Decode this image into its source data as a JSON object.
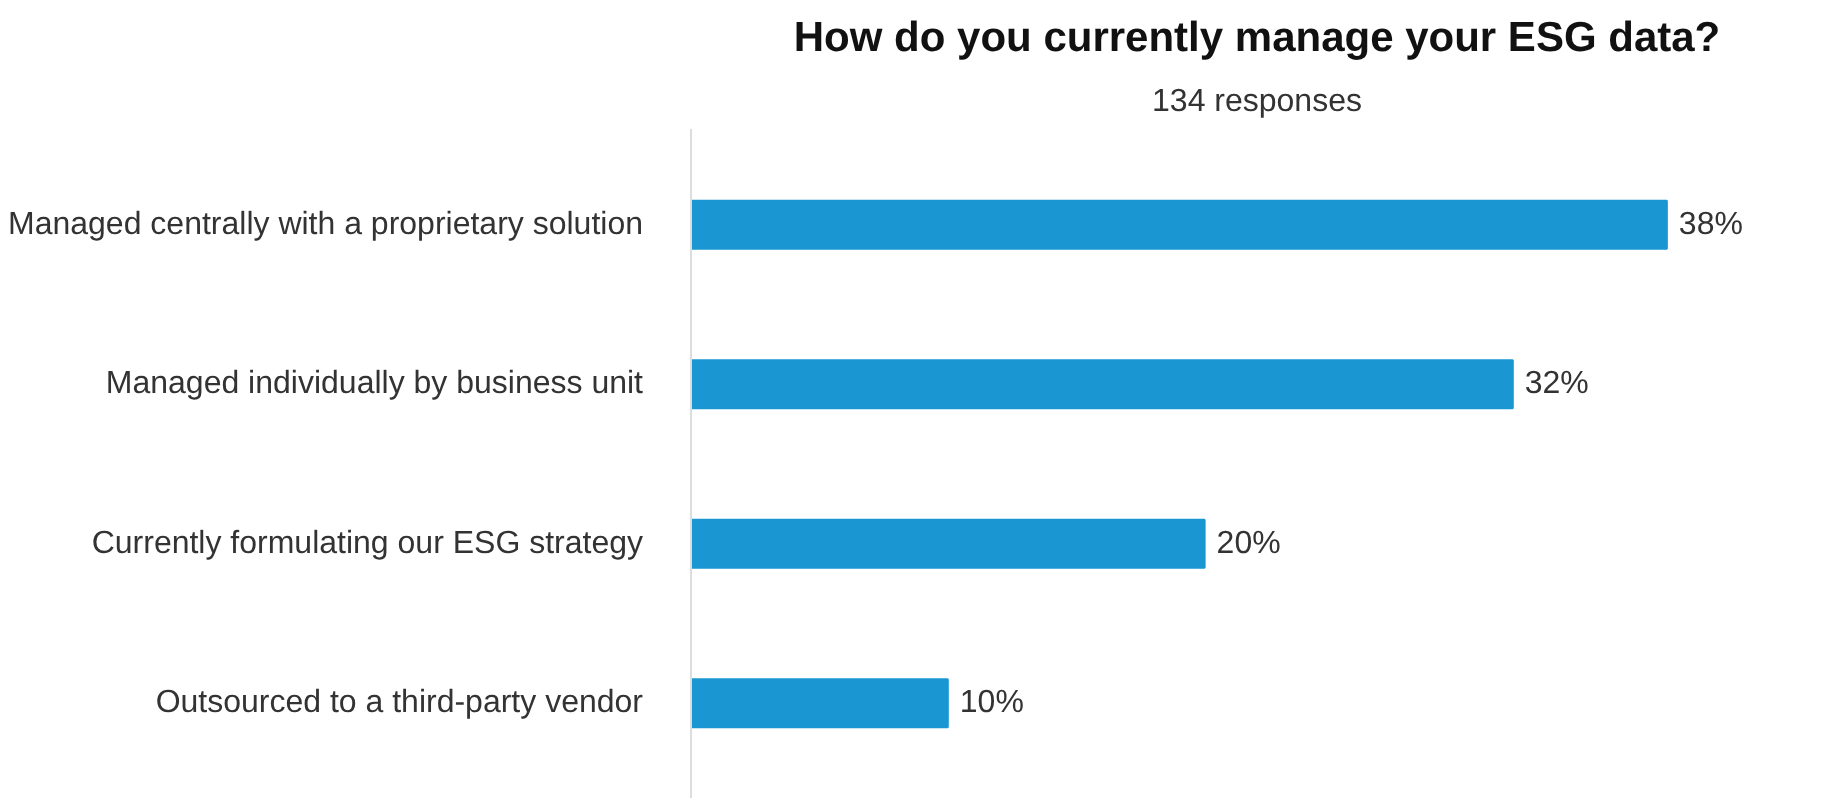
{
  "chart_data": {
    "type": "bar",
    "orientation": "horizontal",
    "title": "How do you currently manage your ESG data?",
    "subtitle": "134 responses",
    "categories": [
      "Managed centrally with a proprietary solution",
      "Managed individually by business unit",
      "Currently formulating our ESG strategy",
      "Outsourced to a third-party vendor"
    ],
    "values": [
      38,
      32,
      20,
      10
    ],
    "value_labels": [
      "38%",
      "32%",
      "20%",
      "10%"
    ],
    "color": "#1a96d2",
    "grid": false
  }
}
